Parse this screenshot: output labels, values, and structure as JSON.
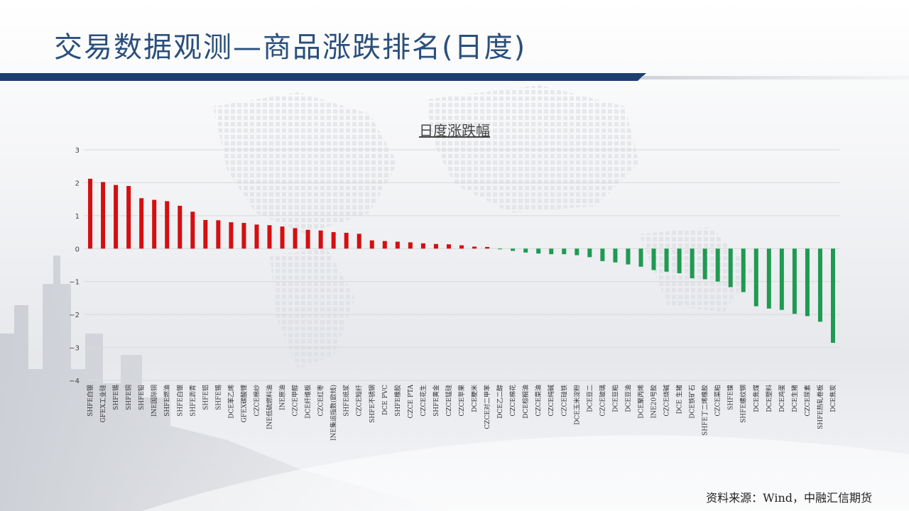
{
  "slide": {
    "title": "交易数据观测—商品涨跌排名(日度)",
    "source": "资料来源：Wind，中融汇信期货"
  },
  "colors": {
    "title": "#2a4f7c",
    "accent_bar": "#1d3f6e",
    "positive": "#d40f10",
    "negative": "#1f9a52",
    "grid": "#d9d9d9"
  },
  "chart_data": {
    "type": "bar",
    "title": "日度涨跌幅",
    "xlabel": "",
    "ylabel": "",
    "ylim": [
      -4,
      3
    ],
    "yticks": [
      3,
      2,
      1,
      0,
      -1,
      -2,
      -3,
      -4
    ],
    "grid": true,
    "categories": [
      "SHFE白银",
      "GFEX工业硅",
      "SHFE锡",
      "SHFE铜",
      "SHFE铅",
      "INE国际铜",
      "SHFE燃油",
      "SHFE白银",
      "SHFE沥青",
      "SHFE铝",
      "SHFE锡",
      "DCE苯乙烯",
      "GFEX碳酸锂",
      "CZCE棉纱",
      "INE低硫燃料油",
      "INE原油",
      "CZCE甲醇",
      "DCE纤维板",
      "CZCE红枣",
      "INE集运指数(欧线)",
      "SHFE纸浆",
      "CZCE短纤",
      "SHFE不锈钢",
      "DCE PVC",
      "SHFE橡胶",
      "CZCE PTA",
      "CZCE花生",
      "SHFE黄金",
      "CZCE锰硅",
      "CZCE苹果",
      "DCE粳米",
      "CZCE对二甲苯",
      "DCE乙二醇",
      "CZCE棉花",
      "DCE棕榈油",
      "CZCE菜油",
      "CZCE纯碱",
      "CZCE硅铁",
      "DCE玉米淀粉",
      "DCE豆二",
      "CZCE玻璃",
      "DCE豆粕",
      "DCE豆油",
      "DCE聚丙烯",
      "INE20号胶",
      "CZCE烧碱",
      "DCE 生猪",
      "DCE铁矿石",
      "SHFE丁二烯橡胶",
      "CZCE菜粕",
      "SHFE镍",
      "SHFE螺纹钢",
      "DCE焦煤",
      "DCE塑料",
      "DCE鸡蛋",
      "DCE生猪",
      "CZCE尿素",
      "SHFE热轧卷板",
      "DCE焦炭"
    ],
    "values": [
      2.12,
      2.02,
      1.93,
      1.9,
      1.53,
      1.48,
      1.44,
      1.3,
      1.12,
      0.87,
      0.86,
      0.8,
      0.78,
      0.73,
      0.71,
      0.67,
      0.62,
      0.57,
      0.55,
      0.5,
      0.48,
      0.45,
      0.25,
      0.23,
      0.21,
      0.19,
      0.16,
      0.14,
      0.13,
      0.1,
      0.06,
      0.05,
      -0.01,
      -0.07,
      -0.12,
      -0.15,
      -0.17,
      -0.17,
      -0.2,
      -0.26,
      -0.38,
      -0.42,
      -0.48,
      -0.55,
      -0.65,
      -0.7,
      -0.75,
      -0.9,
      -0.93,
      -1.0,
      -1.17,
      -1.32,
      -1.75,
      -1.82,
      -1.86,
      -1.98,
      -2.05,
      -2.22,
      -2.86
    ]
  }
}
